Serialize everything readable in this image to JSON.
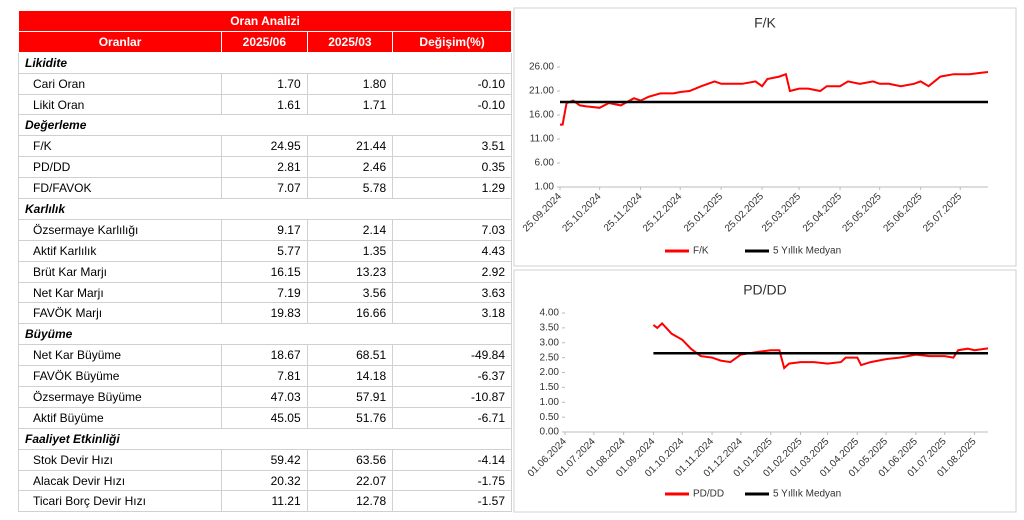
{
  "table": {
    "title": "Oran Analizi",
    "columns": [
      "Oranlar",
      "2025/06",
      "2025/03",
      "Değişim(%)"
    ],
    "sections": [
      {
        "title": "Likidite",
        "rows": [
          [
            "Cari Oran",
            "1.70",
            "1.80",
            "-0.10"
          ],
          [
            "Likit Oran",
            "1.61",
            "1.71",
            "-0.10"
          ]
        ]
      },
      {
        "title": "Değerleme",
        "rows": [
          [
            "F/K",
            "24.95",
            "21.44",
            "3.51"
          ],
          [
            "PD/DD",
            "2.81",
            "2.46",
            "0.35"
          ],
          [
            "FD/FAVOK",
            "7.07",
            "5.78",
            "1.29"
          ]
        ]
      },
      {
        "title": "Karlılık",
        "rows": [
          [
            "Özsermaye Karlılığı",
            "9.17",
            "2.14",
            "7.03"
          ],
          [
            "Aktif Karlılık",
            "5.77",
            "1.35",
            "4.43"
          ],
          [
            "Brüt Kar Marjı",
            "16.15",
            "13.23",
            "2.92"
          ],
          [
            "Net Kar Marjı",
            "7.19",
            "3.56",
            "3.63"
          ],
          [
            "FAVÖK Marjı",
            "19.83",
            "16.66",
            "3.18"
          ]
        ]
      },
      {
        "title": "Büyüme",
        "rows": [
          [
            "Net Kar Büyüme",
            "18.67",
            "68.51",
            "-49.84"
          ],
          [
            "FAVÖK Büyüme",
            "7.81",
            "14.18",
            "-6.37"
          ],
          [
            "Özsermaye Büyüme",
            "47.03",
            "57.91",
            "-10.87"
          ],
          [
            "Aktif Büyüme",
            "45.05",
            "51.76",
            "-6.71"
          ]
        ]
      },
      {
        "title": "Faaliyet Etkinliği",
        "rows": [
          [
            "Stok Devir Hızı",
            "59.42",
            "63.56",
            "-4.14"
          ],
          [
            "Alacak Devir Hızı",
            "20.32",
            "22.07",
            "-1.75"
          ],
          [
            "Ticari Borç Devir Hızı",
            "11.21",
            "12.78",
            "-1.57"
          ]
        ]
      }
    ]
  },
  "chart_data": [
    {
      "type": "line",
      "title": "F/K",
      "grid": false,
      "legend": "bottom",
      "xlim": [
        "25.09.2024",
        "15.08.2025"
      ],
      "xticks": [
        "25.09.2024",
        "25.10.2024",
        "25.11.2024",
        "25.12.2024",
        "25.01.2025",
        "25.02.2025",
        "25.03.2025",
        "25.04.2025",
        "25.05.2025",
        "25.06.2025",
        "25.07.2025"
      ],
      "ylim": [
        1,
        26
      ],
      "yticks": [
        {
          "value": 1,
          "label": "1.00"
        },
        {
          "value": 6,
          "label": "6.00"
        },
        {
          "value": 11,
          "label": "11.00"
        },
        {
          "value": 16,
          "label": "16.00"
        },
        {
          "value": 21,
          "label": "21.00"
        },
        {
          "value": 26,
          "label": "26.00"
        }
      ],
      "series": [
        {
          "name": "F/K",
          "color": "#ff0000",
          "x": [
            "25.09.2024",
            "27.09.2024",
            "30.09.2024",
            "05.10.2024",
            "10.10.2024",
            "15.10.2024",
            "25.10.2024",
            "01.11.2024",
            "10.11.2024",
            "20.11.2024",
            "25.11.2024",
            "01.12.2024",
            "10.12.2024",
            "20.12.2024",
            "25.12.2024",
            "01.01.2025",
            "10.01.2025",
            "20.01.2025",
            "25.01.2025",
            "01.02.2025",
            "10.02.2025",
            "20.02.2025",
            "25.02.2025",
            "01.03.2025",
            "10.03.2025",
            "15.03.2025",
            "18.03.2025",
            "25.03.2025",
            "01.04.2025",
            "10.04.2025",
            "15.04.2025",
            "25.04.2025",
            "01.05.2025",
            "10.05.2025",
            "20.05.2025",
            "25.05.2025",
            "01.06.2025",
            "10.06.2025",
            "20.06.2025",
            "25.06.2025",
            "01.07.2025",
            "10.07.2025",
            "20.07.2025",
            "25.07.2025",
            "01.08.2025",
            "10.08.2025",
            "15.08.2025"
          ],
          "values": [
            14.0,
            14.0,
            18.5,
            19.0,
            18.0,
            17.8,
            17.5,
            18.5,
            18.0,
            19.5,
            19.0,
            19.8,
            20.5,
            20.5,
            20.8,
            21.0,
            22.0,
            23.0,
            22.5,
            22.5,
            22.5,
            23.0,
            22.0,
            23.5,
            24.0,
            24.5,
            21.0,
            21.5,
            21.5,
            21.0,
            22.0,
            22.0,
            23.0,
            22.5,
            23.0,
            22.5,
            22.5,
            22.0,
            22.5,
            23.0,
            22.0,
            24.0,
            24.5,
            24.5,
            24.5,
            24.8,
            24.95
          ]
        },
        {
          "name": "5 Yıllık Medyan",
          "color": "#000000",
          "x": [
            "25.09.2024",
            "15.08.2025"
          ],
          "values": [
            18.7,
            18.7
          ]
        }
      ]
    },
    {
      "type": "line",
      "title": "PD/DD",
      "grid": false,
      "legend": "bottom",
      "xlim": [
        "01.06.2024",
        "15.08.2025"
      ],
      "xticks": [
        "01.06.2024",
        "01.07.2024",
        "01.08.2024",
        "01.09.2024",
        "01.10.2024",
        "01.11.2024",
        "01.12.2024",
        "01.01.2025",
        "01.02.2025",
        "01.03.2025",
        "01.04.2025",
        "01.05.2025",
        "01.06.2025",
        "01.07.2025",
        "01.08.2025"
      ],
      "ylim": [
        0,
        4
      ],
      "yticks": [
        {
          "value": 0,
          "label": "0.00"
        },
        {
          "value": 0.5,
          "label": "0.50"
        },
        {
          "value": 1,
          "label": "1.00"
        },
        {
          "value": 1.5,
          "label": "1.50"
        },
        {
          "value": 2,
          "label": "2.00"
        },
        {
          "value": 2.5,
          "label": "2.50"
        },
        {
          "value": 3,
          "label": "3.00"
        },
        {
          "value": 3.5,
          "label": "3.50"
        },
        {
          "value": 4,
          "label": "4.00"
        }
      ],
      "series": [
        {
          "name": "PD/DD",
          "color": "#ff0000",
          "x": [
            "01.09.2024",
            "05.09.2024",
            "10.09.2024",
            "20.09.2024",
            "01.10.2024",
            "10.10.2024",
            "20.10.2024",
            "01.11.2024",
            "10.11.2024",
            "20.11.2024",
            "01.12.2024",
            "10.12.2024",
            "20.12.2024",
            "01.01.2025",
            "10.01.2025",
            "15.01.2025",
            "20.01.2025",
            "01.02.2025",
            "15.02.2025",
            "01.03.2025",
            "15.03.2025",
            "20.03.2025",
            "01.04.2025",
            "05.04.2025",
            "15.04.2025",
            "01.05.2025",
            "15.05.2025",
            "01.06.2025",
            "15.06.2025",
            "01.07.2025",
            "10.07.2025",
            "15.07.2025",
            "25.07.2025",
            "01.08.2025",
            "15.08.2025"
          ],
          "values": [
            3.6,
            3.5,
            3.65,
            3.3,
            3.1,
            2.8,
            2.55,
            2.5,
            2.4,
            2.35,
            2.6,
            2.65,
            2.7,
            2.75,
            2.75,
            2.15,
            2.3,
            2.35,
            2.35,
            2.3,
            2.35,
            2.5,
            2.5,
            2.25,
            2.35,
            2.45,
            2.5,
            2.6,
            2.55,
            2.55,
            2.5,
            2.75,
            2.8,
            2.75,
            2.81
          ]
        },
        {
          "name": "5 Yıllık Medyan",
          "color": "#000000",
          "x": [
            "01.09.2024",
            "15.08.2025"
          ],
          "values": [
            2.65,
            2.65
          ]
        }
      ]
    }
  ]
}
